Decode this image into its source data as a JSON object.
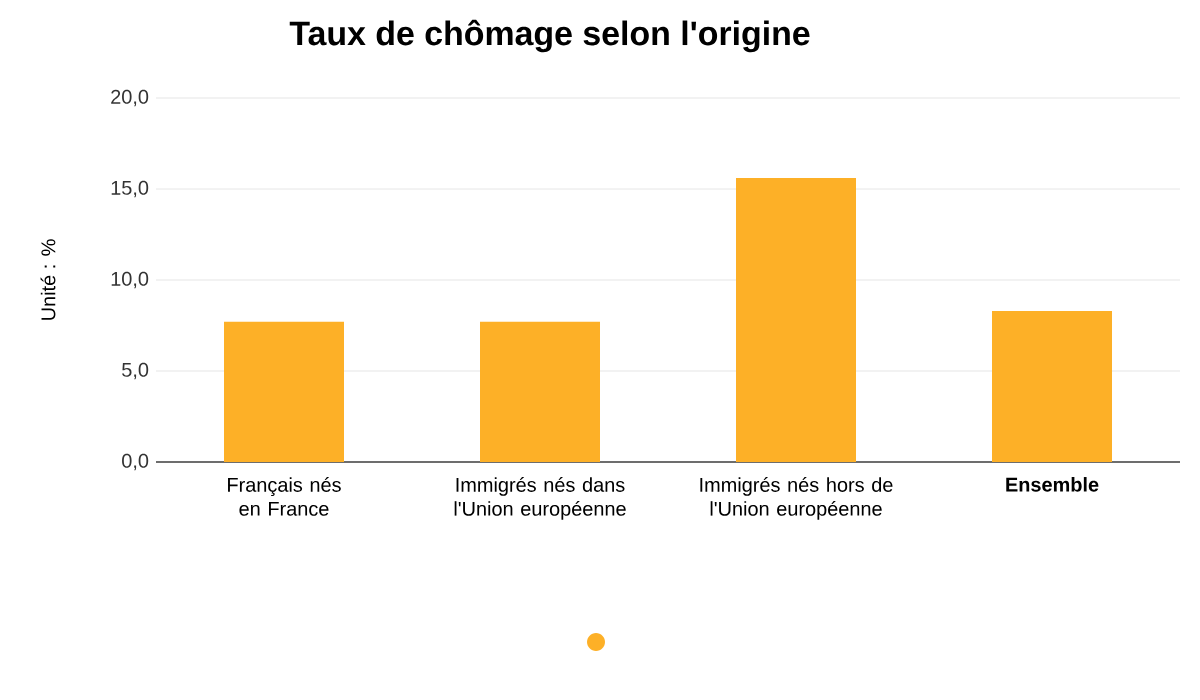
{
  "chart_data": {
    "type": "bar",
    "title": "Taux de chômage selon l'origine",
    "ylabel": "Unité : %",
    "categories": [
      "Français nés en France",
      "Immigrés nés dans l'Union européenne",
      "Immigrés nés hors de l'Union européenne",
      "**Ensemble**"
    ],
    "series": [
      {
        "color": "#fdb027",
        "values": [
          7.7,
          7.7,
          15.6,
          8.3
        ]
      }
    ],
    "ylim": [
      0,
      20
    ],
    "yticks": [
      {
        "value": 0,
        "label": "0,0"
      },
      {
        "value": 5,
        "label": "5,0"
      },
      {
        "value": 10,
        "label": "10,0"
      },
      {
        "value": 15,
        "label": "15,0"
      },
      {
        "value": 20,
        "label": "20,0"
      }
    ],
    "grid": "y"
  }
}
